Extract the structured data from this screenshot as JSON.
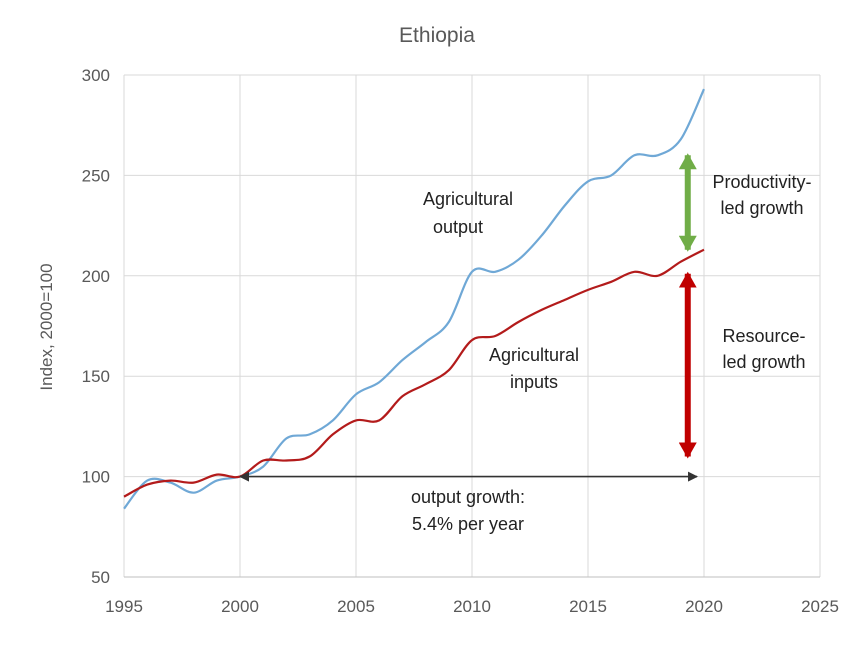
{
  "chart_data": {
    "type": "line",
    "title": "Ethiopia",
    "xlabel": "",
    "ylabel": "Index, 2000=100",
    "xlim": [
      1995,
      2025
    ],
    "ylim": [
      50,
      300
    ],
    "x_ticks": [
      "1995",
      "2000",
      "2005",
      "2010",
      "2015",
      "2020",
      "2025"
    ],
    "y_ticks": [
      "50",
      "100",
      "150",
      "200",
      "250",
      "300"
    ],
    "grid": true,
    "series": [
      {
        "name": "Agricultural output",
        "color": "#6fa8d6",
        "x": [
          1995,
          1996,
          1997,
          1998,
          1999,
          2000,
          2001,
          2002,
          2003,
          2004,
          2005,
          2006,
          2007,
          2008,
          2009,
          2010,
          2011,
          2012,
          2013,
          2014,
          2015,
          2016,
          2017,
          2018,
          2019,
          2020
        ],
        "values": [
          84,
          98,
          97,
          92,
          98,
          100,
          105,
          119,
          121,
          128,
          141,
          147,
          158,
          167,
          177,
          202,
          202,
          208,
          220,
          235,
          247,
          250,
          260,
          260,
          268,
          293
        ]
      },
      {
        "name": "Agricultural inputs",
        "color": "#b31b1b",
        "x": [
          1995,
          1996,
          1997,
          1998,
          1999,
          2000,
          2001,
          2002,
          2003,
          2004,
          2005,
          2006,
          2007,
          2008,
          2009,
          2010,
          2011,
          2012,
          2013,
          2014,
          2015,
          2016,
          2017,
          2018,
          2019,
          2020
        ],
        "values": [
          90,
          96,
          98,
          97,
          101,
          100,
          108,
          108,
          110,
          121,
          128,
          128,
          140,
          146,
          153,
          168,
          170,
          177,
          183,
          188,
          193,
          197,
          202,
          200,
          207,
          213
        ]
      }
    ],
    "annotations": {
      "output_label_1": "Agricultural",
      "output_label_2": "output",
      "inputs_label_1": "Agricultural",
      "inputs_label_2": "inputs",
      "productivity_label_1": "Productivity-",
      "productivity_label_2": "led growth",
      "resource_label_1": "Resource-",
      "resource_label_2": "led growth",
      "growth_label_1": "output growth:",
      "growth_label_2": "5.4% per year"
    },
    "arrows": {
      "output_growth": {
        "x_from": 2000,
        "x_to": 2019.7,
        "y": 100,
        "color": "#333333"
      },
      "productivity": {
        "x": 2019.3,
        "y_from": 207,
        "y_to": 266,
        "color": "#70ad47"
      },
      "resource": {
        "x": 2019.3,
        "y_from": 105,
        "y_to": 207,
        "color": "#c00000"
      }
    }
  }
}
